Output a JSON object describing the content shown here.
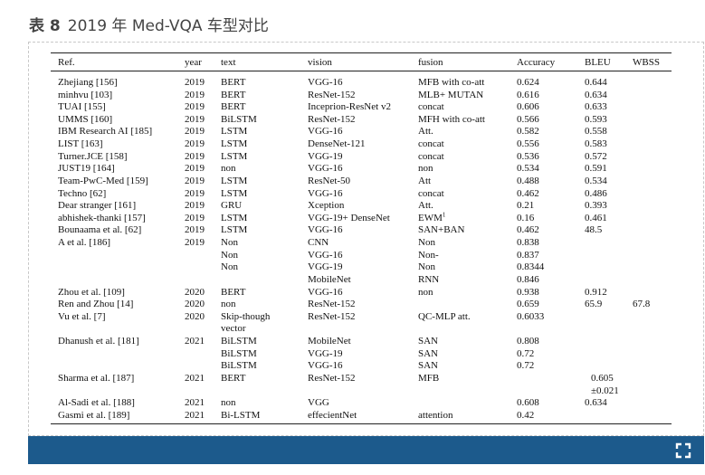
{
  "caption": {
    "label": "表 8",
    "title": "2019 年 Med-VQA 车型对比"
  },
  "table": {
    "headers": {
      "ref": "Ref.",
      "year": "year",
      "text": "text",
      "vision": "vision",
      "fusion": "fusion",
      "accuracy": "Accuracy",
      "bleu": "BLEU",
      "wbss": "WBSS"
    },
    "rows": [
      {
        "ref": "Zhejiang [156]",
        "year": "2019",
        "text": "BERT",
        "vision": "VGG-16",
        "fusion": "MFB with co-att",
        "accuracy": "0.624",
        "bleu": "0.644",
        "wbss": ""
      },
      {
        "ref": "minhvu [103]",
        "year": "2019",
        "text": "BERT",
        "vision": "ResNet-152",
        "fusion": "MLB+ MUTAN",
        "accuracy": "0.616",
        "bleu": "0.634",
        "wbss": ""
      },
      {
        "ref": "TUAI [155]",
        "year": "2019",
        "text": "BERT",
        "vision": "Inceprion-ResNet v2",
        "fusion": "concat",
        "accuracy": "0.606",
        "bleu": "0.633",
        "wbss": ""
      },
      {
        "ref": "UMMS [160]",
        "year": "2019",
        "text": "BiLSTM",
        "vision": "ResNet-152",
        "fusion": "MFH with co-att",
        "accuracy": "0.566",
        "bleu": "0.593",
        "wbss": ""
      },
      {
        "ref": "IBM Research AI [185]",
        "year": "2019",
        "text": "LSTM",
        "vision": "VGG-16",
        "fusion": "Att.",
        "accuracy": "0.582",
        "bleu": "0.558",
        "wbss": ""
      },
      {
        "ref": "LIST [163]",
        "year": "2019",
        "text": "LSTM",
        "vision": "DenseNet-121",
        "fusion": "concat",
        "accuracy": "0.556",
        "bleu": "0.583",
        "wbss": ""
      },
      {
        "ref": "Turner.JCE [158]",
        "year": "2019",
        "text": "LSTM",
        "vision": "VGG-19",
        "fusion": "concat",
        "accuracy": "0.536",
        "bleu": "0.572",
        "wbss": ""
      },
      {
        "ref": "JUST19 [164]",
        "year": "2019",
        "text": "non",
        "vision": "VGG-16",
        "fusion": "non",
        "accuracy": "0.534",
        "bleu": "0.591",
        "wbss": ""
      },
      {
        "ref": "Team-PwC-Med [159]",
        "year": "2019",
        "text": "LSTM",
        "vision": "ResNet-50",
        "fusion": "Att",
        "accuracy": "0.488",
        "bleu": "0.534",
        "wbss": ""
      },
      {
        "ref": "Techno [62]",
        "year": "2019",
        "text": "LSTM",
        "vision": "VGG-16",
        "fusion": "concat",
        "accuracy": "0.462",
        "bleu": "0.486",
        "wbss": ""
      },
      {
        "ref": "Dear stranger [161]",
        "year": "2019",
        "text": "GRU",
        "vision": "Xception",
        "fusion": "Att.",
        "accuracy": "0.21",
        "bleu": "0.393",
        "wbss": ""
      },
      {
        "ref": "abhishek-thanki [157]",
        "year": "2019",
        "text": "LSTM",
        "vision": "VGG-19+ DenseNet",
        "fusion": "EWM",
        "fusion_sup": "1",
        "accuracy": "0.16",
        "bleu": "0.461",
        "wbss": ""
      },
      {
        "ref": "Bounaama et al. [62]",
        "year": "2019",
        "text": "LSTM",
        "vision": "VGG-16",
        "fusion": "SAN+BAN",
        "accuracy": "0.462",
        "bleu": "48.5",
        "wbss": ""
      },
      {
        "ref": "A et al. [186]",
        "year": "2019",
        "text": "Non",
        "vision": "CNN",
        "fusion": "Non",
        "accuracy": "0.838",
        "bleu": "",
        "wbss": ""
      },
      {
        "ref": "",
        "year": "",
        "text": "Non",
        "vision": "VGG-16",
        "fusion": "Non-",
        "accuracy": "0.837",
        "bleu": "",
        "wbss": ""
      },
      {
        "ref": "",
        "year": "",
        "text": "Non",
        "vision": "VGG-19",
        "fusion": "Non",
        "accuracy": "0.8344",
        "bleu": "",
        "wbss": ""
      },
      {
        "ref": "",
        "year": "",
        "text": "",
        "vision": "MobileNet",
        "fusion": "RNN",
        "accuracy": "0.846",
        "bleu": "",
        "wbss": ""
      },
      {
        "ref": "Zhou et al. [109]",
        "year": "2020",
        "text": "BERT",
        "vision": "VGG-16",
        "fusion": "non",
        "accuracy": "0.938",
        "bleu": "0.912",
        "wbss": ""
      },
      {
        "ref": "Ren and Zhou [14]",
        "year": "2020",
        "text": "non",
        "vision": "ResNet-152",
        "fusion": "",
        "accuracy": "0.659",
        "bleu": "65.9",
        "wbss": "67.8"
      },
      {
        "ref": "Vu et al. [7]",
        "year": "2020",
        "text": "Skip-though",
        "vision": "ResNet-152",
        "fusion": "QC-MLP att.",
        "accuracy": "0.6033",
        "bleu": "",
        "wbss": ""
      },
      {
        "ref": "",
        "year": "",
        "text": "vector",
        "vision": "",
        "fusion": "",
        "accuracy": "",
        "bleu": "",
        "wbss": ""
      },
      {
        "ref": "Dhanush et al. [181]",
        "year": "2021",
        "text": "BiLSTM",
        "vision": "MobileNet",
        "fusion": "SAN",
        "accuracy": "0.808",
        "bleu": "",
        "wbss": ""
      },
      {
        "ref": "",
        "year": "",
        "text": "BiLSTM",
        "vision": "VGG-19",
        "fusion": "SAN",
        "accuracy": "0.72",
        "bleu": "",
        "wbss": ""
      },
      {
        "ref": "",
        "year": "",
        "text": "BiLSTM",
        "vision": "VGG-16",
        "fusion": "SAN",
        "accuracy": "0.72",
        "bleu": "",
        "wbss": ""
      },
      {
        "ref": "Sharma et al. [187]",
        "year": "2021",
        "text": "BERT",
        "vision": "ResNet-152",
        "fusion": "MFB",
        "accuracy": "",
        "bleu": "0.605",
        "wbss": ""
      },
      {
        "ref": "",
        "year": "",
        "text": "",
        "vision": "",
        "fusion": "",
        "accuracy": "",
        "bleu": "±0.021",
        "wbss": ""
      },
      {
        "ref": "Al-Sadi et al. [188]",
        "year": "2021",
        "text": "non",
        "vision": "VGG",
        "fusion": "",
        "accuracy": "0.608",
        "bleu": "0.634",
        "wbss": ""
      },
      {
        "ref": "Gasmi et al. [189]",
        "year": "2021",
        "text": "Bi-LSTM",
        "vision": "effecientNet",
        "fusion": "attention",
        "accuracy": "0.42",
        "bleu": "",
        "wbss": ""
      }
    ]
  },
  "footer": {
    "bar_color": "#1c5a8c",
    "expand_icon": "expand-icon"
  }
}
